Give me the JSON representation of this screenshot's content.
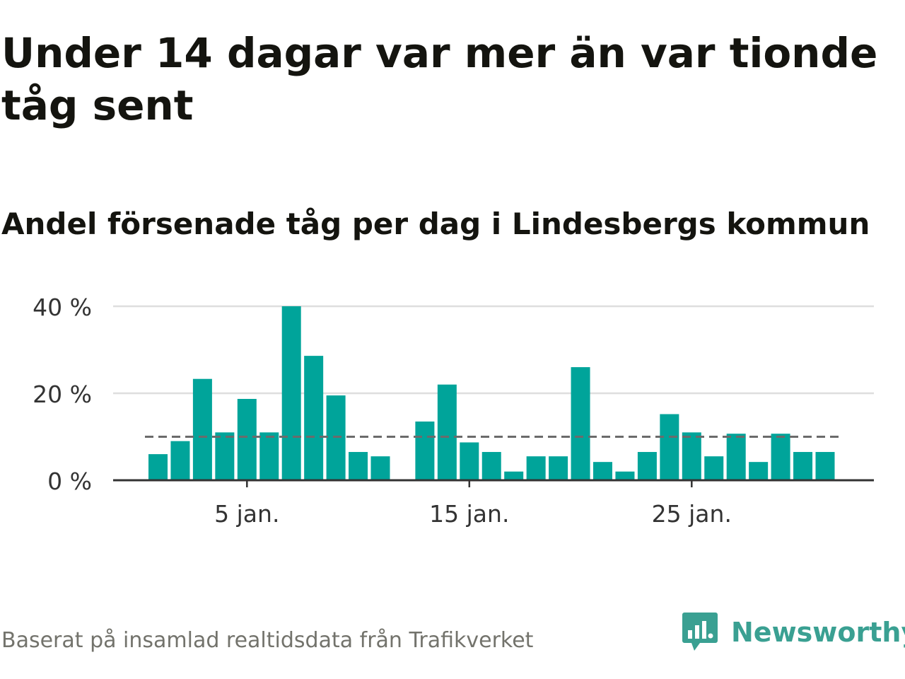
{
  "title": "Under 14 dagar var mer än var tionde tåg sent",
  "subtitle": "Andel försenade tåg per dag i Lindesbergs kommun",
  "footer": "Baserat på insamlad realtidsdata från Trafikverket",
  "brand": {
    "name": "Newsworthy",
    "icon": "newsworthy-logo-icon",
    "color": "#3aa092"
  },
  "colors": {
    "bar": "#00a49a",
    "reference_line": "#6b6b6b",
    "grid": "#dedede",
    "axis": "#333333"
  },
  "chart_data": {
    "type": "bar",
    "x": [
      "1 jan.",
      "2 jan.",
      "3 jan.",
      "4 jan.",
      "5 jan.",
      "6 jan.",
      "7 jan.",
      "8 jan.",
      "9 jan.",
      "10 jan.",
      "11 jan.",
      "12 jan.",
      "13 jan.",
      "14 jan.",
      "15 jan.",
      "16 jan.",
      "17 jan.",
      "18 jan.",
      "19 jan.",
      "20 jan.",
      "21 jan.",
      "22 jan.",
      "23 jan.",
      "24 jan.",
      "25 jan.",
      "26 jan.",
      "27 jan.",
      "28 jan.",
      "29 jan.",
      "30 jan.",
      "31 jan."
    ],
    "values": [
      6,
      9,
      23.3,
      11,
      18.7,
      11,
      40,
      28.6,
      19.5,
      6.5,
      5.5,
      null,
      13.5,
      22,
      8.7,
      6.5,
      2,
      5.5,
      5.5,
      26,
      4.2,
      2,
      6.5,
      15.2,
      11,
      5.5,
      10.7,
      4.2,
      10.7,
      6.5,
      6.5
    ],
    "x_ticks": [
      "5 jan.",
      "15 jan.",
      "25 jan."
    ],
    "x_tick_days": [
      5,
      15,
      25
    ],
    "y_ticks": [
      "0 %",
      "20 %",
      "40 %"
    ],
    "y_tick_values": [
      0,
      20,
      40
    ],
    "ylim": [
      0,
      40
    ],
    "reference_line": 10,
    "grid": true
  }
}
